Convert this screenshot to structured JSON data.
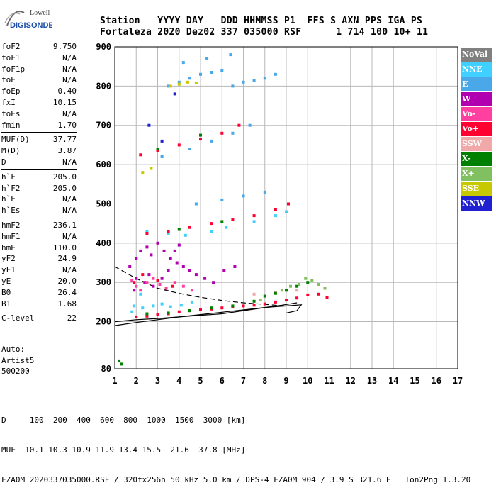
{
  "logo": {
    "line1": "Lowell",
    "line2": "DIGISONDE"
  },
  "header": {
    "labels": "Station   YYYY DAY   DDD HHMMSS P1  FFS S AXN PPS IGA PS",
    "values": "Fortaleza 2020 Dez02 337 035000 RSF      1 714 100 10+ 11"
  },
  "params": [
    {
      "k": "foF2",
      "v": "9.750"
    },
    {
      "k": "foF1",
      "v": "N/A"
    },
    {
      "k": "foF1p",
      "v": "N/A"
    },
    {
      "k": "foE",
      "v": "N/A"
    },
    {
      "k": "foEp",
      "v": "0.40"
    },
    {
      "k": "fxI",
      "v": "10.15"
    },
    {
      "k": "foEs",
      "v": "N/A"
    },
    {
      "k": "fmin",
      "v": "1.70"
    },
    {
      "sep": true
    },
    {
      "k": "MUF(D)",
      "v": "37.77"
    },
    {
      "k": "M(D)",
      "v": "3.87"
    },
    {
      "k": "D",
      "v": "N/A"
    },
    {
      "sep": true
    },
    {
      "k": "h`F",
      "v": "205.0"
    },
    {
      "k": "h`F2",
      "v": "205.0"
    },
    {
      "k": "h`E",
      "v": "N/A"
    },
    {
      "k": "h`Es",
      "v": "N/A"
    },
    {
      "sep": true
    },
    {
      "k": "hmF2",
      "v": "236.1"
    },
    {
      "k": "hmF1",
      "v": "N/A"
    },
    {
      "k": "hmE",
      "v": "110.0"
    },
    {
      "k": "yF2",
      "v": "24.9"
    },
    {
      "k": "yF1",
      "v": "N/A"
    },
    {
      "k": "yE",
      "v": "20.0"
    },
    {
      "k": "B0",
      "v": "26.4"
    },
    {
      "k": "B1",
      "v": "1.68"
    },
    {
      "sep": true
    },
    {
      "k": "C-level",
      "v": "22"
    }
  ],
  "auto": {
    "line1": "Auto:",
    "line2": "Artist5",
    "line3": "500200"
  },
  "bottom": {
    "line1": "D     100  200  400  600  800  1000  1500  3000 [km]",
    "line2": "MUF  10.1 10.3 10.9 11.9 13.4 15.5  21.6  37.8 [MHz]",
    "line3": "FZA0M_2020337035000.RSF / 320fx256h 50 kHz 5.0 km / DPS-4 FZA0M 904 / 3.9 S 321.6 E   Ion2Png 1.3.20"
  },
  "legend": [
    {
      "label": "NoVal",
      "color": "#808080"
    },
    {
      "label": "NNE",
      "color": "#40d0ff"
    },
    {
      "label": "E",
      "color": "#4aa8e8"
    },
    {
      "label": "W",
      "color": "#b000b0"
    },
    {
      "label": "Vo-",
      "color": "#ff40a0"
    },
    {
      "label": "Vo+",
      "color": "#ff0030"
    },
    {
      "label": "SSW",
      "color": "#f0a8a8"
    },
    {
      "label": "X-",
      "color": "#008000"
    },
    {
      "label": "X+",
      "color": "#80c060"
    },
    {
      "label": "SSE",
      "color": "#c8c800"
    },
    {
      "label": "NNW",
      "color": "#2020d0"
    }
  ],
  "chart_data": {
    "type": "scatter",
    "title": "",
    "xlabel": "",
    "ylabel": "",
    "xlim": [
      1,
      17
    ],
    "ylim": [
      80,
      900
    ],
    "x_ticks": [
      1,
      2,
      3,
      4,
      5,
      6,
      7,
      8,
      9,
      10,
      11,
      12,
      13,
      14,
      15,
      16,
      17
    ],
    "y_ticks": [
      80,
      200,
      300,
      400,
      500,
      600,
      700,
      800,
      900
    ],
    "grid": true,
    "series": [
      {
        "name": "NNE",
        "color": "#40d0ff",
        "points": [
          [
            1.9,
            240
          ],
          [
            2.3,
            235
          ],
          [
            2.8,
            240
          ],
          [
            3.2,
            245
          ],
          [
            3.6,
            238
          ],
          [
            4.1,
            242
          ],
          [
            4.6,
            250
          ],
          [
            2.5,
            430
          ],
          [
            3.5,
            425
          ],
          [
            4.3,
            420
          ],
          [
            5.5,
            430
          ],
          [
            6.2,
            440
          ],
          [
            7.5,
            455
          ],
          [
            8.5,
            470
          ],
          [
            9.0,
            480
          ],
          [
            2.2,
            270
          ],
          [
            1.8,
            225
          ]
        ]
      },
      {
        "name": "E",
        "color": "#4aa8e8",
        "points": [
          [
            3.5,
            800
          ],
          [
            4.0,
            810
          ],
          [
            4.5,
            820
          ],
          [
            5.0,
            830
          ],
          [
            5.5,
            835
          ],
          [
            6.0,
            840
          ],
          [
            6.5,
            800
          ],
          [
            7.0,
            810
          ],
          [
            7.5,
            815
          ],
          [
            8.0,
            820
          ],
          [
            8.5,
            830
          ],
          [
            4.2,
            860
          ],
          [
            5.3,
            870
          ],
          [
            6.4,
            880
          ],
          [
            3.2,
            620
          ],
          [
            4.5,
            640
          ],
          [
            5.5,
            660
          ],
          [
            6.5,
            680
          ],
          [
            7.3,
            700
          ],
          [
            4.8,
            500
          ],
          [
            6.0,
            510
          ],
          [
            7.0,
            520
          ],
          [
            8.0,
            530
          ]
        ]
      },
      {
        "name": "W",
        "color": "#b000b0",
        "points": [
          [
            1.7,
            340
          ],
          [
            2.0,
            360
          ],
          [
            2.2,
            380
          ],
          [
            2.5,
            390
          ],
          [
            2.7,
            370
          ],
          [
            3.0,
            400
          ],
          [
            3.3,
            380
          ],
          [
            3.6,
            360
          ],
          [
            3.9,
            350
          ],
          [
            4.2,
            340
          ],
          [
            4.5,
            330
          ],
          [
            4.8,
            320
          ],
          [
            5.2,
            310
          ],
          [
            5.6,
            300
          ],
          [
            6.1,
            330
          ],
          [
            6.6,
            340
          ],
          [
            2.0,
            310
          ],
          [
            2.4,
            300
          ],
          [
            2.8,
            290
          ],
          [
            3.2,
            310
          ],
          [
            3.5,
            330
          ],
          [
            1.9,
            280
          ],
          [
            2.6,
            320
          ],
          [
            3.8,
            380
          ],
          [
            4.0,
            395
          ]
        ]
      },
      {
        "name": "Vo-",
        "color": "#ff40a0",
        "points": [
          [
            1.8,
            305
          ],
          [
            2.0,
            290
          ],
          [
            2.2,
            280
          ],
          [
            2.5,
            300
          ],
          [
            2.8,
            310
          ],
          [
            3.1,
            295
          ],
          [
            3.4,
            285
          ],
          [
            3.8,
            300
          ],
          [
            4.2,
            290
          ],
          [
            4.6,
            280
          ]
        ]
      },
      {
        "name": "Vo+",
        "color": "#ff0030",
        "points": [
          [
            2.0,
            212
          ],
          [
            2.5,
            214
          ],
          [
            3.0,
            218
          ],
          [
            3.5,
            220
          ],
          [
            4.0,
            225
          ],
          [
            4.5,
            228
          ],
          [
            5.0,
            230
          ],
          [
            5.5,
            232
          ],
          [
            6.0,
            235
          ],
          [
            6.5,
            238
          ],
          [
            7.0,
            240
          ],
          [
            7.5,
            242
          ],
          [
            8.0,
            245
          ],
          [
            8.5,
            250
          ],
          [
            9.0,
            255
          ],
          [
            9.5,
            260
          ],
          [
            10.0,
            268
          ],
          [
            10.5,
            270
          ],
          [
            10.9,
            262
          ],
          [
            2.5,
            425
          ],
          [
            3.5,
            430
          ],
          [
            4.5,
            440
          ],
          [
            5.5,
            450
          ],
          [
            6.5,
            460
          ],
          [
            7.5,
            470
          ],
          [
            8.5,
            485
          ],
          [
            9.1,
            500
          ],
          [
            2.2,
            625
          ],
          [
            3.0,
            635
          ],
          [
            4.0,
            650
          ],
          [
            5.0,
            665
          ],
          [
            6.0,
            680
          ],
          [
            6.8,
            700
          ],
          [
            1.9,
            300
          ],
          [
            2.3,
            320
          ],
          [
            3.0,
            305
          ],
          [
            3.7,
            290
          ]
        ]
      },
      {
        "name": "SSW",
        "color": "#f0a8a8",
        "points": [
          [
            7.5,
            270
          ],
          [
            8.5,
            275
          ],
          [
            9.5,
            280
          ]
        ]
      },
      {
        "name": "X-",
        "color": "#008000",
        "points": [
          [
            1.2,
            100
          ],
          [
            1.3,
            92
          ],
          [
            2.5,
            220
          ],
          [
            3.5,
            222
          ],
          [
            4.5,
            228
          ],
          [
            5.5,
            235
          ],
          [
            6.5,
            240
          ],
          [
            7.5,
            252
          ],
          [
            8.0,
            265
          ],
          [
            8.5,
            272
          ],
          [
            9.0,
            280
          ],
          [
            9.5,
            290
          ],
          [
            10.0,
            300
          ],
          [
            4.0,
            435
          ],
          [
            6.0,
            455
          ],
          [
            3.0,
            640
          ],
          [
            5.0,
            675
          ]
        ]
      },
      {
        "name": "X+",
        "color": "#80c060",
        "points": [
          [
            9.6,
            295
          ],
          [
            9.9,
            310
          ],
          [
            10.2,
            305
          ],
          [
            10.5,
            295
          ],
          [
            10.8,
            285
          ],
          [
            9.2,
            290
          ],
          [
            8.8,
            280
          ],
          [
            7.8,
            255
          ]
        ]
      },
      {
        "name": "SSE",
        "color": "#c8c800",
        "points": [
          [
            3.6,
            800
          ],
          [
            4.0,
            805
          ],
          [
            4.4,
            810
          ],
          [
            4.8,
            808
          ],
          [
            2.3,
            580
          ],
          [
            2.7,
            590
          ]
        ]
      },
      {
        "name": "NNW",
        "color": "#2020d0",
        "points": [
          [
            2.6,
            700
          ],
          [
            3.2,
            660
          ],
          [
            3.8,
            780
          ]
        ]
      }
    ],
    "lines": [
      {
        "name": "profile-lower",
        "points": [
          [
            1.0,
            190
          ],
          [
            2.0,
            198
          ],
          [
            3.0,
            205
          ],
          [
            4.0,
            212
          ],
          [
            5.0,
            218
          ],
          [
            6.0,
            224
          ],
          [
            7.0,
            230
          ],
          [
            8.0,
            236
          ],
          [
            9.0,
            240
          ],
          [
            9.7,
            243
          ],
          [
            9.5,
            228
          ],
          [
            9.0,
            222
          ]
        ]
      },
      {
        "name": "profile-upper",
        "points": [
          [
            1.0,
            200
          ],
          [
            2.0,
            205
          ],
          [
            3.0,
            208
          ],
          [
            4.0,
            212
          ],
          [
            5.0,
            216
          ],
          [
            6.0,
            220
          ],
          [
            7.0,
            228
          ],
          [
            8.0,
            236
          ],
          [
            8.8,
            242
          ],
          [
            9.5,
            248
          ]
        ]
      },
      {
        "name": "profile-dashed",
        "dashed": true,
        "points": [
          [
            1.0,
            340
          ],
          [
            2.0,
            310
          ],
          [
            3.0,
            285
          ],
          [
            4.0,
            272
          ],
          [
            5.0,
            262
          ],
          [
            6.0,
            254
          ],
          [
            7.0,
            248
          ],
          [
            8.0,
            244
          ],
          [
            8.9,
            240
          ]
        ]
      }
    ]
  }
}
